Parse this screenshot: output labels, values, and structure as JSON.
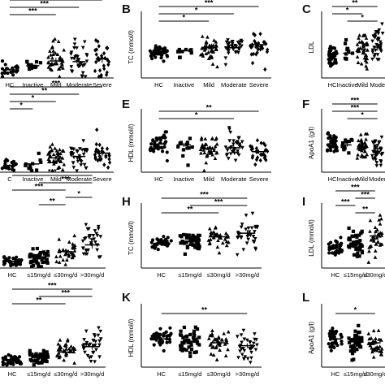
{
  "figure": {
    "panel_letters": [
      "B",
      "C",
      "E",
      "F",
      "H",
      "I",
      "K",
      "L"
    ]
  },
  "chart_data": [
    {
      "id": "A",
      "type": "scatter",
      "ylabel": "",
      "categories": [
        "HC",
        "Inactive",
        "Mild",
        "Moderate",
        "Severe"
      ],
      "markers": [
        "circle",
        "square",
        "triangle",
        "triangle-down",
        "diamond"
      ],
      "ylim": [
        0,
        10
      ],
      "means": [
        1.2,
        1.8,
        2.5,
        2.4,
        2.8
      ],
      "spread": [
        0.5,
        0.6,
        1.3,
        1.3,
        1.6
      ],
      "counts": [
        20,
        12,
        40,
        34,
        28
      ],
      "significance": [
        {
          "from": 0,
          "to": 4,
          "label": "***"
        },
        {
          "from": 0,
          "to": 3,
          "label": "***"
        },
        {
          "from": 0,
          "to": 2,
          "label": "***"
        }
      ]
    },
    {
      "id": "B",
      "type": "scatter",
      "ylabel": "TC (mmol/l)",
      "categories": [
        "HC",
        "Inactive",
        "Mild",
        "Moderate",
        "Severe"
      ],
      "markers": [
        "circle",
        "square",
        "triangle",
        "triangle-down",
        "diamond"
      ],
      "ylim": [
        0,
        10
      ],
      "means": [
        4.1,
        4.4,
        4.9,
        4.9,
        5.4
      ],
      "spread": [
        0.5,
        0.5,
        1.0,
        0.9,
        1.3
      ],
      "counts": [
        40,
        12,
        40,
        34,
        28
      ],
      "significance": [
        {
          "from": 0,
          "to": 4,
          "label": "***"
        },
        {
          "from": 0,
          "to": 3,
          "label": "*"
        },
        {
          "from": 0,
          "to": 2,
          "label": "*"
        }
      ]
    },
    {
      "id": "C",
      "type": "scatter",
      "ylabel": "LDL",
      "categories": [
        "HC",
        "Inactive",
        "Mild",
        "Mode"
      ],
      "markers": [
        "circle",
        "square",
        "triangle",
        "triangle-down"
      ],
      "ylim": [
        0,
        6
      ],
      "means": [
        2.1,
        2.4,
        2.8,
        3.0
      ],
      "spread": [
        0.4,
        0.5,
        0.9,
        1.0
      ],
      "counts": [
        40,
        12,
        40,
        34
      ],
      "significance": [
        {
          "from": 0,
          "to": 3,
          "label": "***"
        },
        {
          "from": 0,
          "to": 3,
          "label": "**"
        },
        {
          "from": 0,
          "to": 2,
          "label": "*"
        },
        {
          "from": 1,
          "to": 3,
          "label": "*"
        }
      ]
    },
    {
      "id": "D",
      "type": "scatter",
      "ylabel": "",
      "categories": [
        "C",
        "Inactive",
        "Mild",
        "Moderate",
        "Severe"
      ],
      "markers": [
        "circle",
        "square",
        "triangle",
        "triangle-down",
        "diamond"
      ],
      "ylim": [
        0,
        10
      ],
      "means": [
        1.0,
        1.2,
        2.1,
        2.3,
        2.8
      ],
      "spread": [
        0.4,
        0.5,
        1.0,
        1.1,
        1.4
      ],
      "counts": [
        20,
        12,
        40,
        34,
        28
      ],
      "significance": [
        {
          "from": 0,
          "to": 4,
          "label": "***"
        },
        {
          "from": 0,
          "to": 3,
          "label": "**"
        },
        {
          "from": 0,
          "to": 2,
          "label": "*"
        },
        {
          "from": 0,
          "to": 1,
          "label": "*"
        }
      ]
    },
    {
      "id": "E",
      "type": "scatter",
      "ylabel": "HDL (mmol/l)",
      "categories": [
        "HC",
        "Inactive",
        "Mild",
        "Moderate",
        "Severe"
      ],
      "markers": [
        "circle",
        "square",
        "triangle",
        "triangle-down",
        "diamond"
      ],
      "ylim": [
        0,
        3
      ],
      "means": [
        1.45,
        1.4,
        1.2,
        1.25,
        1.05
      ],
      "spread": [
        0.28,
        0.3,
        0.35,
        0.38,
        0.3
      ],
      "counts": [
        40,
        12,
        40,
        34,
        28
      ],
      "significance": [
        {
          "from": 0,
          "to": 4,
          "label": "**"
        },
        {
          "from": 0,
          "to": 3,
          "label": "*"
        }
      ]
    },
    {
      "id": "F",
      "type": "scatter",
      "ylabel": "ApoA1 (g/l)",
      "categories": [
        "HC",
        "Inactive",
        "Mild",
        "Moder"
      ],
      "markers": [
        "circle",
        "square",
        "triangle",
        "triangle-down"
      ],
      "ylim": [
        0,
        3
      ],
      "means": [
        1.45,
        1.4,
        1.3,
        1.2
      ],
      "spread": [
        0.28,
        0.25,
        0.32,
        0.4
      ],
      "counts": [
        40,
        12,
        40,
        34
      ],
      "significance": [
        {
          "from": 0,
          "to": 3,
          "label": "***"
        },
        {
          "from": 0,
          "to": 3,
          "label": "***"
        },
        {
          "from": 1,
          "to": 3,
          "label": "*"
        }
      ]
    },
    {
      "id": "G",
      "type": "scatter",
      "ylabel": "",
      "categories": [
        "HC",
        "≤15mg/d",
        "≤30mg/d",
        ">30mg/d"
      ],
      "markers": [
        "circle",
        "square",
        "triangle",
        "triangle-down"
      ],
      "ylim": [
        0,
        10
      ],
      "means": [
        1.0,
        1.6,
        2.4,
        3.4
      ],
      "spread": [
        0.4,
        0.7,
        1.0,
        1.6
      ],
      "counts": [
        40,
        44,
        36,
        34
      ],
      "significance": [
        {
          "from": 0,
          "to": 3,
          "label": "***"
        },
        {
          "from": 1,
          "to": 3,
          "label": "***"
        },
        {
          "from": 0,
          "to": 2,
          "label": "***"
        },
        {
          "from": 2,
          "to": 3,
          "label": "*"
        },
        {
          "from": 1,
          "to": 2,
          "label": "**"
        }
      ]
    },
    {
      "id": "H",
      "type": "scatter",
      "ylabel": "TC (mmol/l)",
      "categories": [
        "HC",
        "≤15mg/d",
        "≤30mg/d",
        ">30mg/d"
      ],
      "markers": [
        "circle",
        "square",
        "triangle",
        "triangle-down"
      ],
      "ylim": [
        0,
        10
      ],
      "means": [
        4.1,
        4.4,
        5.2,
        5.8
      ],
      "spread": [
        0.5,
        0.9,
        1.0,
        1.5
      ],
      "counts": [
        40,
        44,
        36,
        34
      ],
      "significance": [
        {
          "from": 0,
          "to": 3,
          "label": "***"
        },
        {
          "from": 1,
          "to": 3,
          "label": "***"
        },
        {
          "from": 0,
          "to": 2,
          "label": "**"
        }
      ]
    },
    {
      "id": "I",
      "type": "scatter",
      "ylabel": "LDL (mmol/l)",
      "categories": [
        "HC",
        "≤15mg/d",
        "≤30mg/d"
      ],
      "markers": [
        "circle",
        "square",
        "triangle"
      ],
      "ylim": [
        0,
        6
      ],
      "means": [
        2.0,
        2.5,
        3.2
      ],
      "spread": [
        0.4,
        0.8,
        1.0
      ],
      "counts": [
        40,
        44,
        36
      ],
      "significance": [
        {
          "from": 0,
          "to": 2,
          "label": "***"
        },
        {
          "from": 1,
          "to": 2,
          "label": "***"
        },
        {
          "from": 0,
          "to": 1,
          "label": "***"
        },
        {
          "from": 1,
          "to": 2,
          "label": "**"
        }
      ]
    },
    {
      "id": "J",
      "type": "scatter",
      "ylabel": "",
      "categories": [
        "HC",
        "≤15mg/d",
        "≤30mg/d",
        ">30mg/d"
      ],
      "markers": [
        "circle",
        "square",
        "triangle",
        "triangle-down"
      ],
      "ylim": [
        0,
        10
      ],
      "means": [
        1.0,
        1.4,
        2.2,
        3.0
      ],
      "spread": [
        0.4,
        0.6,
        0.9,
        1.3
      ],
      "counts": [
        40,
        44,
        36,
        34
      ],
      "significance": [
        {
          "from": 0,
          "to": 3,
          "label": "***"
        },
        {
          "from": 1,
          "to": 3,
          "label": "***"
        },
        {
          "from": 0,
          "to": 2,
          "label": "**"
        }
      ]
    },
    {
      "id": "K",
      "type": "scatter",
      "ylabel": "HDL (mmol/l)",
      "categories": [
        "HC",
        "≤15mg/d",
        "≤30mg/d",
        ">30mg/d"
      ],
      "markers": [
        "circle",
        "square",
        "triangle",
        "triangle-down"
      ],
      "ylim": [
        0,
        3
      ],
      "means": [
        1.45,
        1.3,
        1.25,
        1.1
      ],
      "spread": [
        0.28,
        0.4,
        0.3,
        0.35
      ],
      "counts": [
        40,
        44,
        36,
        34
      ],
      "significance": [
        {
          "from": 0,
          "to": 3,
          "label": "**"
        }
      ]
    },
    {
      "id": "L",
      "type": "scatter",
      "ylabel": "ApoA1 (g/l)",
      "categories": [
        "HC",
        "≤15mg/d",
        "≤30mg/d"
      ],
      "markers": [
        "circle",
        "square",
        "triangle"
      ],
      "ylim": [
        0,
        3
      ],
      "means": [
        1.45,
        1.3,
        1.25
      ],
      "spread": [
        0.28,
        0.35,
        0.3
      ],
      "counts": [
        40,
        44,
        36
      ],
      "significance": [
        {
          "from": 0,
          "to": 2,
          "label": "*"
        }
      ]
    }
  ]
}
